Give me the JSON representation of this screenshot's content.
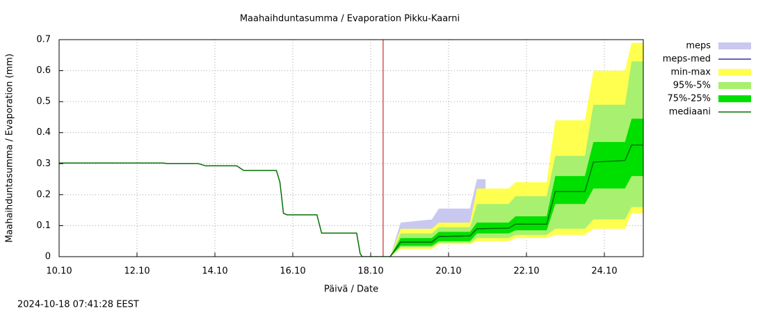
{
  "chart_data": {
    "type": "band",
    "title": "Maahaihduntasumma / Evaporation   Pikku-Kaarni",
    "x_label": "Päivä / Date",
    "y_label": "Maahaihduntasumma / Evaporation (mm)",
    "timestamp": "2024-10-18 07:41:28 EEST",
    "xlim": [
      0,
      15
    ],
    "ylim": [
      0,
      0.7
    ],
    "xticks": [
      {
        "value": 0,
        "label": "10.10"
      },
      {
        "value": 2,
        "label": "12.10"
      },
      {
        "value": 4,
        "label": "14.10"
      },
      {
        "value": 6,
        "label": "16.10"
      },
      {
        "value": 8,
        "label": "18.10"
      },
      {
        "value": 10,
        "label": "20.10"
      },
      {
        "value": 12,
        "label": "22.10"
      },
      {
        "value": 14,
        "label": "24.10"
      }
    ],
    "yticks": [
      0,
      0.1,
      0.2,
      0.3,
      0.4,
      0.5,
      0.6,
      0.7
    ],
    "grid": true,
    "current_time_x": 8.32,
    "current_time_color": "#c00000",
    "series": [
      {
        "name": "meps",
        "kind": "band",
        "color": "#c8c8f0",
        "x": [
          8.5,
          8.77,
          9.57,
          9.75,
          10.55,
          10.73,
          10.95
        ],
        "upper": [
          0,
          0.11,
          0.12,
          0.155,
          0.155,
          0.25,
          0.25
        ],
        "lower": [
          0,
          0.03,
          0.03,
          0.045,
          0.045,
          0.06,
          0.06
        ]
      },
      {
        "name": "meps-med",
        "kind": "line",
        "color": "#3030a0",
        "x": [
          8.5,
          8.77,
          9.57,
          9.75,
          10.55,
          10.73,
          10.95
        ],
        "values": [
          0,
          0.047,
          0.047,
          0.065,
          0.067,
          0.09,
          0.09
        ]
      },
      {
        "name": "min-max",
        "kind": "band",
        "color": "#ffff50",
        "x": [
          8.5,
          8.77,
          9.57,
          9.75,
          10.55,
          10.73,
          11.54,
          11.72,
          12.52,
          12.74,
          13.5,
          13.72,
          14.53,
          14.7,
          15
        ],
        "upper": [
          0,
          0.09,
          0.09,
          0.11,
          0.11,
          0.22,
          0.22,
          0.24,
          0.24,
          0.44,
          0.44,
          0.6,
          0.6,
          0.69,
          0.69
        ],
        "lower": [
          0,
          0.025,
          0.025,
          0.04,
          0.04,
          0.05,
          0.05,
          0.06,
          0.06,
          0.07,
          0.07,
          0.09,
          0.09,
          0.14,
          0.14
        ]
      },
      {
        "name": "95%-5%",
        "kind": "band",
        "color": "#a8f070",
        "x": [
          8.5,
          8.77,
          9.57,
          9.75,
          10.55,
          10.73,
          11.54,
          11.72,
          12.52,
          12.74,
          13.5,
          13.72,
          14.53,
          14.7,
          15
        ],
        "upper": [
          0,
          0.075,
          0.075,
          0.095,
          0.095,
          0.17,
          0.17,
          0.195,
          0.195,
          0.325,
          0.325,
          0.49,
          0.49,
          0.63,
          0.63
        ],
        "lower": [
          0,
          0.03,
          0.03,
          0.045,
          0.045,
          0.06,
          0.06,
          0.07,
          0.07,
          0.09,
          0.09,
          0.12,
          0.12,
          0.16,
          0.16
        ]
      },
      {
        "name": "75%-25%",
        "kind": "band",
        "color": "#00e000",
        "x": [
          8.5,
          8.77,
          9.57,
          9.75,
          10.55,
          10.73,
          11.54,
          11.72,
          12.52,
          12.74,
          13.5,
          13.72,
          14.53,
          14.7,
          15
        ],
        "upper": [
          0,
          0.06,
          0.06,
          0.08,
          0.08,
          0.11,
          0.11,
          0.13,
          0.13,
          0.26,
          0.26,
          0.37,
          0.37,
          0.445,
          0.445
        ],
        "lower": [
          0,
          0.035,
          0.035,
          0.05,
          0.05,
          0.075,
          0.075,
          0.085,
          0.085,
          0.17,
          0.17,
          0.22,
          0.22,
          0.26,
          0.26
        ]
      },
      {
        "name": "mediaani",
        "kind": "line",
        "color": "#007000",
        "x": [
          0,
          2.68,
          2.77,
          3.58,
          3.76,
          4.56,
          4.74,
          5.58,
          5.67,
          5.76,
          5.85,
          6.62,
          6.74,
          7.64,
          7.73,
          7.78,
          8.5,
          8.77,
          9.57,
          9.75,
          10.55,
          10.73,
          11.54,
          11.72,
          12.52,
          12.74,
          13.5,
          13.72,
          14.53,
          14.7,
          15
        ],
        "values": [
          0.302,
          0.302,
          0.3,
          0.3,
          0.293,
          0.293,
          0.278,
          0.278,
          0.24,
          0.14,
          0.135,
          0.135,
          0.076,
          0.076,
          0.01,
          0,
          0,
          0.047,
          0.047,
          0.065,
          0.067,
          0.09,
          0.092,
          0.105,
          0.105,
          0.21,
          0.21,
          0.305,
          0.31,
          0.36,
          0.36
        ]
      }
    ]
  }
}
